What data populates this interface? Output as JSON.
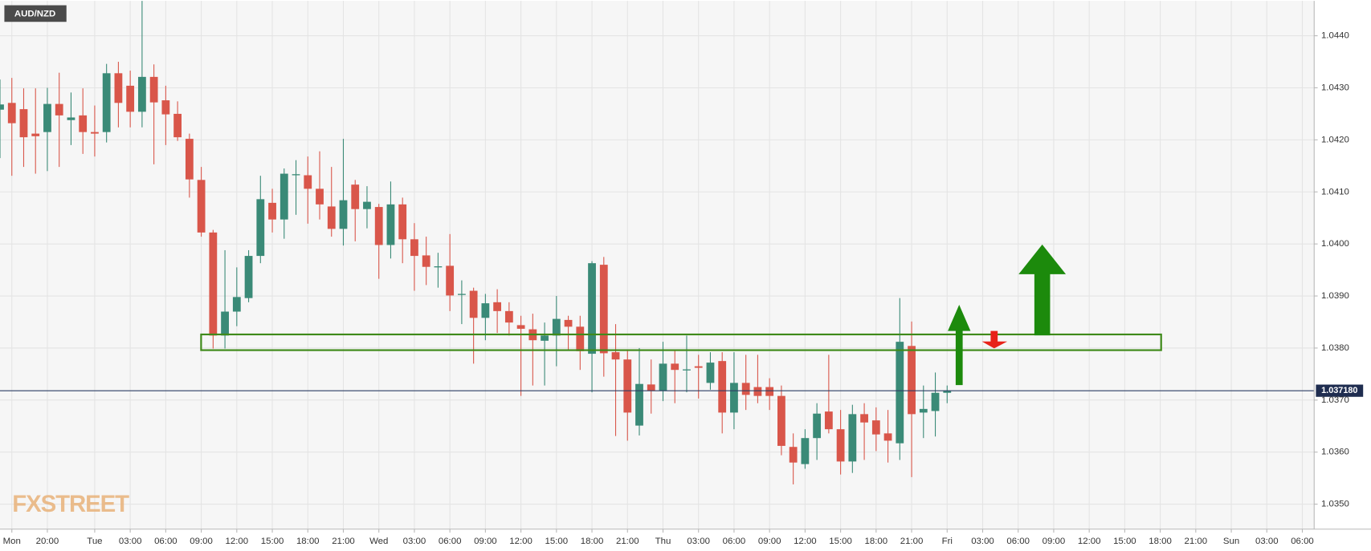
{
  "chart_data": {
    "type": "candlestick",
    "title": "AUD/NZD",
    "watermark": "FXSTREET",
    "up_color": "#3a8a77",
    "down_color": "#d9564a",
    "grid": true,
    "xlim": [
      -8,
      103
    ],
    "ylim": [
      1.03452,
      1.04467
    ],
    "yticks": [
      {
        "value": 1.035,
        "label": "1.0350"
      },
      {
        "value": 1.036,
        "label": "1.0360"
      },
      {
        "value": 1.037,
        "label": "1.0370"
      },
      {
        "value": 1.038,
        "label": "1.0380"
      },
      {
        "value": 1.039,
        "label": "1.0390"
      },
      {
        "value": 1.04,
        "label": "1.0400"
      },
      {
        "value": 1.041,
        "label": "1.0410"
      },
      {
        "value": 1.042,
        "label": "1.0420"
      },
      {
        "value": 1.043,
        "label": "1.0430"
      },
      {
        "value": 1.044,
        "label": "1.0440"
      }
    ],
    "xticks": [
      {
        "value": -7,
        "label": "Mon"
      },
      {
        "value": -4,
        "label": "20:00"
      },
      {
        "value": 0,
        "label": "Tue"
      },
      {
        "value": 3,
        "label": "03:00"
      },
      {
        "value": 6,
        "label": "06:00"
      },
      {
        "value": 9,
        "label": "09:00"
      },
      {
        "value": 12,
        "label": "12:00"
      },
      {
        "value": 15,
        "label": "15:00"
      },
      {
        "value": 18,
        "label": "18:00"
      },
      {
        "value": 21,
        "label": "21:00"
      },
      {
        "value": 24,
        "label": "Wed"
      },
      {
        "value": 27,
        "label": "03:00"
      },
      {
        "value": 30,
        "label": "06:00"
      },
      {
        "value": 33,
        "label": "09:00"
      },
      {
        "value": 36,
        "label": "12:00"
      },
      {
        "value": 39,
        "label": "15:00"
      },
      {
        "value": 42,
        "label": "18:00"
      },
      {
        "value": 45,
        "label": "21:00"
      },
      {
        "value": 48,
        "label": "Thu"
      },
      {
        "value": 51,
        "label": "03:00"
      },
      {
        "value": 54,
        "label": "06:00"
      },
      {
        "value": 57,
        "label": "09:00"
      },
      {
        "value": 60,
        "label": "12:00"
      },
      {
        "value": 63,
        "label": "15:00"
      },
      {
        "value": 66,
        "label": "18:00"
      },
      {
        "value": 69,
        "label": "21:00"
      },
      {
        "value": 72,
        "label": "Fri"
      },
      {
        "value": 75,
        "label": "03:00"
      },
      {
        "value": 78,
        "label": "06:00"
      },
      {
        "value": 81,
        "label": "09:00"
      },
      {
        "value": 84,
        "label": "12:00"
      },
      {
        "value": 87,
        "label": "15:00"
      },
      {
        "value": 90,
        "label": "18:00"
      },
      {
        "value": 93,
        "label": "21:00"
      },
      {
        "value": 96,
        "label": "Sun"
      },
      {
        "value": 99,
        "label": "03:00"
      },
      {
        "value": 102,
        "label": "06:00"
      }
    ],
    "x": [
      -8,
      -7,
      -6,
      -5,
      -4,
      -3,
      -2,
      -1,
      0,
      1,
      2,
      3,
      4,
      5,
      6,
      7,
      8,
      9,
      10,
      11,
      12,
      13,
      14,
      15,
      16,
      17,
      18,
      19,
      20,
      21,
      22,
      23,
      24,
      25,
      26,
      27,
      28,
      29,
      30,
      31,
      32,
      33,
      34,
      35,
      36,
      37,
      38,
      39,
      40,
      41,
      42,
      43,
      44,
      45,
      46,
      47,
      48,
      49,
      50,
      51,
      52,
      53,
      54,
      55,
      56,
      57,
      58,
      59,
      60,
      61,
      62,
      63,
      64,
      65,
      66,
      67,
      68,
      69,
      70,
      71,
      72
    ],
    "open": [
      1.04258,
      1.04271,
      1.04259,
      1.04212,
      1.04215,
      1.04269,
      1.04238,
      1.04247,
      1.04215,
      1.04215,
      1.04328,
      1.04304,
      1.04254,
      1.04321,
      1.04276,
      1.0425,
      1.04202,
      1.04123,
      1.04022,
      1.03824,
      1.0387,
      1.03896,
      1.03977,
      1.04079,
      1.04047,
      1.04132,
      1.04132,
      1.04106,
      1.04072,
      1.04029,
      1.04114,
      1.04067,
      1.04071,
      1.03998,
      1.04076,
      1.04009,
      1.03978,
      1.03955,
      1.03958,
      1.03903,
      1.0391,
      1.03858,
      1.03888,
      1.03871,
      1.03844,
      1.03836,
      1.03814,
      1.03824,
      1.03854,
      1.03841,
      1.03789,
      1.0396,
      1.03792,
      1.03778,
      1.03651,
      1.0373,
      1.03718,
      1.0377,
      1.03757,
      1.03765,
      1.03733,
      1.03775,
      1.03676,
      1.03733,
      1.03725,
      1.03725,
      1.03708,
      1.0361,
      1.03577,
      1.03627,
      1.03678,
      1.03644,
      1.03582,
      1.03673,
      1.03661,
      1.03636,
      1.03617,
      1.03804,
      1.03676,
      1.03679,
      1.03714
    ],
    "high": [
      1.04316,
      1.04319,
      1.04299,
      1.04299,
      1.043,
      1.04329,
      1.04291,
      1.04299,
      1.04266,
      1.04346,
      1.0435,
      1.04333,
      1.04467,
      1.04345,
      1.04304,
      1.04274,
      1.04212,
      1.04148,
      1.04027,
      1.03988,
      1.03955,
      1.03988,
      1.04131,
      1.04106,
      1.04145,
      1.04161,
      1.04168,
      1.04178,
      1.04148,
      1.04202,
      1.04123,
      1.04111,
      1.04077,
      1.0412,
      1.04089,
      1.0404,
      1.04014,
      1.03983,
      1.04019,
      1.0393,
      1.03916,
      1.03904,
      1.03913,
      1.03888,
      1.03862,
      1.03866,
      1.03849,
      1.039,
      1.03862,
      1.03862,
      1.03967,
      1.03975,
      1.03846,
      1.03795,
      1.038,
      1.03778,
      1.03812,
      1.03795,
      1.03824,
      1.03787,
      1.03792,
      1.03792,
      1.03792,
      1.03787,
      1.03787,
      1.03742,
      1.03728,
      1.03636,
      1.03644,
      1.03694,
      1.03787,
      1.03681,
      1.03691,
      1.03694,
      1.03686,
      1.03681,
      1.03896,
      1.03851,
      1.03728,
      1.03753,
      1.03728
    ],
    "low": [
      1.04165,
      1.04131,
      1.04148,
      1.04135,
      1.0414,
      1.04148,
      1.0419,
      1.04173,
      1.04168,
      1.04195,
      1.04224,
      1.04224,
      1.04224,
      1.04153,
      1.0419,
      1.04198,
      1.04089,
      1.04014,
      1.03799,
      1.03799,
      1.03842,
      1.03888,
      1.03963,
      1.04022,
      1.0401,
      1.04056,
      1.04039,
      1.04047,
      1.04014,
      1.03997,
      1.04005,
      1.0403,
      1.03933,
      1.03972,
      1.03963,
      1.0391,
      1.03921,
      1.03916,
      1.03871,
      1.03846,
      1.0377,
      1.03815,
      1.03829,
      1.03824,
      1.03708,
      1.03728,
      1.03728,
      1.03765,
      1.03795,
      1.03758,
      1.03715,
      1.03745,
      1.03631,
      1.03622,
      1.03632,
      1.03674,
      1.03698,
      1.03694,
      1.03715,
      1.03703,
      1.0372,
      1.03636,
      1.03644,
      1.03681,
      1.03694,
      1.03681,
      1.03594,
      1.03538,
      1.03568,
      1.03585,
      1.03636,
      1.03557,
      1.0356,
      1.03585,
      1.03602,
      1.0358,
      1.03585,
      1.03552,
      1.03627,
      1.0363,
      1.03694
    ],
    "close": [
      1.04268,
      1.04232,
      1.04205,
      1.04207,
      1.04269,
      1.04247,
      1.04243,
      1.04215,
      1.04212,
      1.04328,
      1.04271,
      1.04254,
      1.04321,
      1.04272,
      1.04249,
      1.04205,
      1.04124,
      1.04022,
      1.03824,
      1.0387,
      1.03898,
      1.03977,
      1.04086,
      1.04047,
      1.04135,
      1.04134,
      1.04106,
      1.04076,
      1.04029,
      1.04084,
      1.04067,
      1.04081,
      1.03998,
      1.04076,
      1.04009,
      1.03977,
      1.03956,
      1.03957,
      1.03901,
      1.03904,
      1.03858,
      1.03886,
      1.03871,
      1.03849,
      1.03837,
      1.03815,
      1.03824,
      1.03856,
      1.03841,
      1.03794,
      1.03963,
      1.0379,
      1.03778,
      1.03676,
      1.03731,
      1.03718,
      1.0377,
      1.03758,
      1.03759,
      1.03762,
      1.03772,
      1.03676,
      1.03733,
      1.0371,
      1.03708,
      1.03708,
      1.03612,
      1.0358,
      1.03627,
      1.03674,
      1.03644,
      1.03582,
      1.03673,
      1.03657,
      1.03634,
      1.03622,
      1.03812,
      1.03673,
      1.03683,
      1.03714,
      1.03718
    ],
    "last_price": {
      "value": 1.03718,
      "label": "1.037180"
    }
  }
}
